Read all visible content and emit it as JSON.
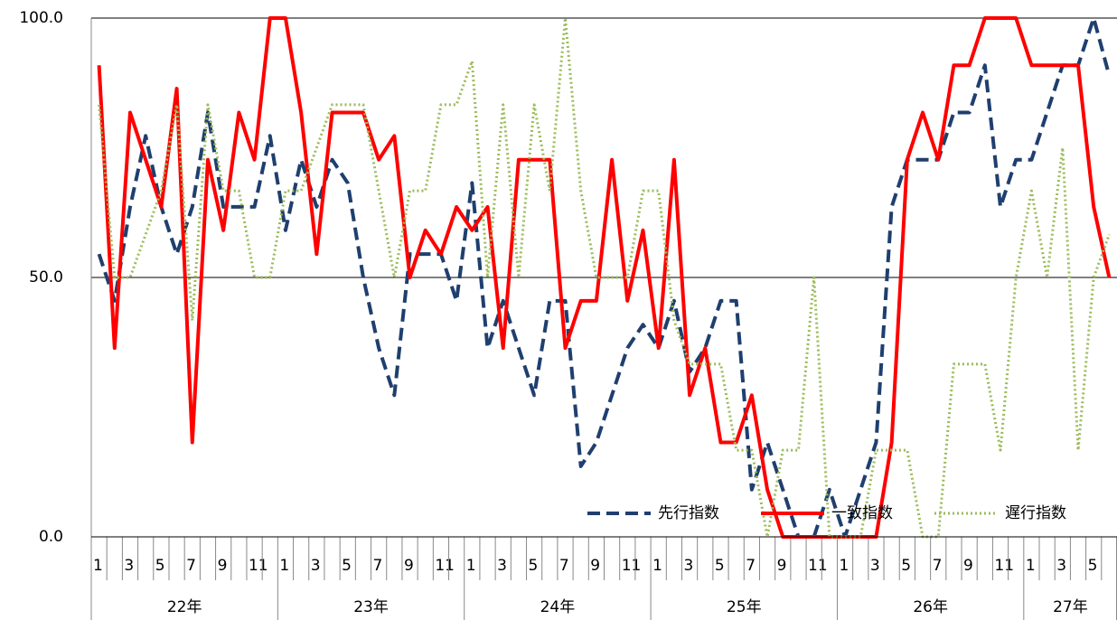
{
  "chart_data": {
    "type": "line",
    "categories": [
      "1",
      null,
      "3",
      null,
      "5",
      null,
      "7",
      null,
      "9",
      null,
      "11",
      null,
      "1",
      null,
      "3",
      null,
      "5",
      null,
      "7",
      null,
      "9",
      null,
      "11",
      null,
      "1",
      null,
      "3",
      null,
      "5",
      null,
      "7",
      null,
      "9",
      null,
      "11",
      null,
      "1",
      null,
      "3",
      null,
      "5",
      null,
      "7",
      null,
      "9",
      null,
      "11",
      null,
      "1",
      null,
      "3",
      null,
      "5",
      null,
      "7",
      null,
      "9",
      null,
      "11",
      null,
      "1",
      null,
      "3",
      null,
      "5",
      null
    ],
    "groups": [
      "22年",
      "23年",
      "24年",
      "25年",
      "26年",
      "27年"
    ],
    "series": [
      {
        "name": "先行指数",
        "color": "#1f3f6e",
        "style": "dashed",
        "values": [
          54.5,
          45.5,
          63.6,
          77.3,
          63.6,
          54.5,
          63.6,
          81.8,
          63.6,
          63.6,
          63.6,
          77.3,
          59.1,
          72.7,
          63.6,
          72.7,
          68.2,
          50,
          36.4,
          27.3,
          54.5,
          54.5,
          54.5,
          45.5,
          68.2,
          36.4,
          45.5,
          36.4,
          27.3,
          45.5,
          45.5,
          13.6,
          18.2,
          27.3,
          36.4,
          40.9,
          36.4,
          45.5,
          31.8,
          36.4,
          45.5,
          45.5,
          9.1,
          18.2,
          9.1,
          0,
          0,
          9.1,
          0,
          9.1,
          18.2,
          63.6,
          72.7,
          72.7,
          72.7,
          81.8,
          81.8,
          90.9,
          63.6,
          72.7,
          72.7,
          81.8,
          90.9,
          90.9,
          100,
          88.9
        ]
      },
      {
        "name": "一致指数",
        "color": "#ff0000",
        "style": "solid",
        "values": [
          90.9,
          36.4,
          81.8,
          72.7,
          63.6,
          86.4,
          18.2,
          72.7,
          59.1,
          81.8,
          72.7,
          100,
          100,
          81.8,
          54.5,
          81.8,
          81.8,
          81.8,
          72.7,
          77.3,
          50,
          59.1,
          54.5,
          63.6,
          59.1,
          63.6,
          36.4,
          72.7,
          72.7,
          72.7,
          36.4,
          45.5,
          45.5,
          72.7,
          45.5,
          59.1,
          36.4,
          72.7,
          27.3,
          36.4,
          18.2,
          18.2,
          27.3,
          9.1,
          0,
          0,
          0,
          0,
          0,
          0,
          0,
          18.2,
          72.7,
          81.8,
          72.7,
          90.9,
          90.9,
          100,
          100,
          100,
          90.9,
          90.9,
          90.9,
          90.9,
          63.6,
          50
        ]
      },
      {
        "name": "遅行指数",
        "color": "#9bbb59",
        "style": "dotted",
        "values": [
          83.3,
          50,
          50,
          58.3,
          66.7,
          83.3,
          41.7,
          83.3,
          66.7,
          66.7,
          50,
          50,
          66.7,
          66.7,
          75,
          83.3,
          83.3,
          83.3,
          66.7,
          50,
          66.7,
          66.7,
          83.3,
          83.3,
          91.7,
          50,
          83.3,
          50,
          83.3,
          66.7,
          100,
          66.7,
          50,
          50,
          50,
          66.7,
          66.7,
          41.7,
          33.3,
          33.3,
          33.3,
          16.7,
          16.7,
          0,
          16.7,
          16.7,
          50,
          0,
          0,
          0,
          16.7,
          16.7,
          16.7,
          0,
          0,
          33.3,
          33.3,
          33.3,
          16.7,
          50,
          66.7,
          50,
          75,
          16.7,
          50,
          58.3
        ]
      }
    ],
    "ylim": [
      0,
      100
    ],
    "yticks": [
      {
        "value": 0,
        "label": "0.0"
      },
      {
        "value": 50,
        "label": "50.0"
      },
      {
        "value": 100,
        "label": "100.0"
      }
    ],
    "grid": true,
    "legend": "lower right"
  }
}
